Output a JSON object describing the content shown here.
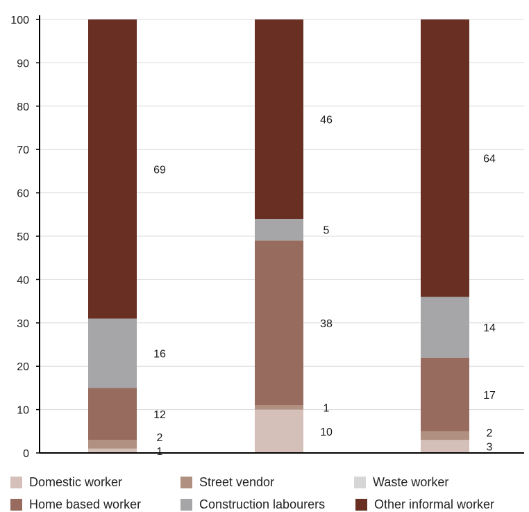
{
  "chart_data": {
    "type": "bar",
    "stacked": true,
    "categories": [
      "",
      "",
      ""
    ],
    "ylim": [
      0,
      100
    ],
    "yticks": [
      0,
      10,
      20,
      30,
      40,
      50,
      60,
      70,
      80,
      90,
      100
    ],
    "grid": true,
    "legend_position": "bottom",
    "series": [
      {
        "name": "Domestic worker",
        "color": "#d4c0b8",
        "values": [
          1,
          10,
          3
        ]
      },
      {
        "name": "Street vendor",
        "color": "#b09080",
        "values": [
          2,
          1,
          2
        ]
      },
      {
        "name": "Waste worker",
        "color": "#d6d6d6",
        "values": [
          0,
          0,
          0
        ]
      },
      {
        "name": "Home based worker",
        "color": "#976b5d",
        "values": [
          12,
          38,
          17
        ]
      },
      {
        "name": "Construction labourers",
        "color": "#a6a6a9",
        "values": [
          16,
          5,
          14
        ]
      },
      {
        "name": "Other informal worker",
        "color": "#682f22",
        "values": [
          69,
          46,
          64
        ]
      }
    ],
    "data_labels": [
      [
        "1",
        "2",
        "12",
        "16",
        "69"
      ],
      [
        "10",
        "1",
        "38",
        "5",
        "46"
      ],
      [
        "3",
        "2",
        "17",
        "14",
        "64"
      ]
    ]
  }
}
